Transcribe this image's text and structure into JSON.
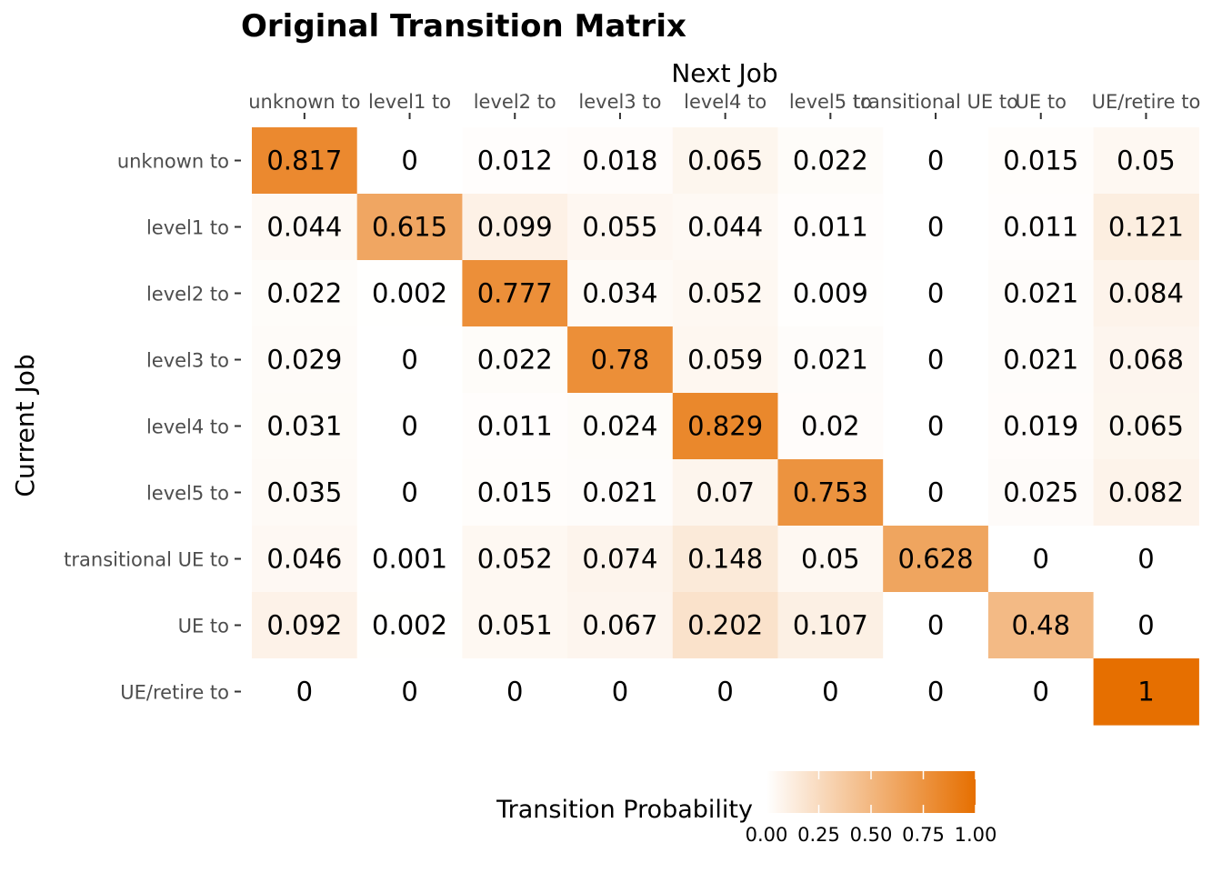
{
  "chart_data": {
    "type": "heatmap",
    "title": "Original Transition Matrix",
    "xlabel": "Next Job",
    "ylabel": "Current Job",
    "x_categories": [
      "unknown to",
      "level1 to",
      "level2 to",
      "level3 to",
      "level4 to",
      "level5 to",
      "transitional UE to",
      "UE to",
      "UE/retire to"
    ],
    "y_categories": [
      "unknown to",
      "level1 to",
      "level2 to",
      "level3 to",
      "level4 to",
      "level5 to",
      "transitional UE to",
      "UE to",
      "UE/retire to"
    ],
    "x_axis_position": "top",
    "values": [
      [
        0.817,
        0,
        0.012,
        0.018,
        0.065,
        0.022,
        0,
        0.015,
        0.05
      ],
      [
        0.044,
        0.615,
        0.099,
        0.055,
        0.044,
        0.011,
        0,
        0.011,
        0.121
      ],
      [
        0.022,
        0.002,
        0.777,
        0.034,
        0.052,
        0.009,
        0,
        0.021,
        0.084
      ],
      [
        0.029,
        0,
        0.022,
        0.78,
        0.059,
        0.021,
        0,
        0.021,
        0.068
      ],
      [
        0.031,
        0,
        0.011,
        0.024,
        0.829,
        0.02,
        0,
        0.019,
        0.065
      ],
      [
        0.035,
        0,
        0.015,
        0.021,
        0.07,
        0.753,
        0,
        0.025,
        0.082
      ],
      [
        0.046,
        0.001,
        0.052,
        0.074,
        0.148,
        0.05,
        0.628,
        0,
        0
      ],
      [
        0.092,
        0.002,
        0.051,
        0.067,
        0.202,
        0.107,
        0,
        0.48,
        0
      ],
      [
        0,
        0,
        0,
        0,
        0,
        0,
        0,
        0,
        1
      ]
    ],
    "colorbar": {
      "title": "Transition Probability",
      "range": [
        0,
        1
      ],
      "ticks": [
        "0.00",
        "0.25",
        "0.50",
        "0.75",
        "1.00"
      ],
      "tick_values": [
        0,
        0.25,
        0.5,
        0.75,
        1
      ],
      "low_color": "#ffffff",
      "high_color": "#e66f00",
      "placement": "bottom"
    },
    "grid": false
  }
}
